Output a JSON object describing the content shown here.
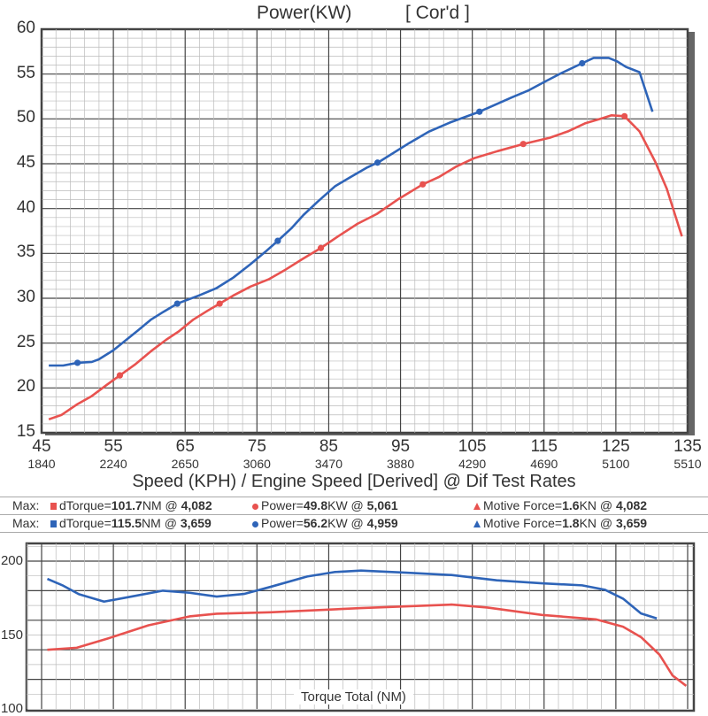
{
  "chart_data": [
    {
      "type": "line",
      "title": "Power(KW)",
      "title_suffix": "[ Cor'd ]",
      "xlabel": "Speed (KPH) / Engine Speed [Derived] @ Dif Test Rates",
      "ylabel": "",
      "xlim": [
        45,
        135
      ],
      "ylim": [
        15,
        60
      ],
      "x_ticks": [
        "45",
        "55",
        "65",
        "75",
        "85",
        "95",
        "105",
        "115",
        "125",
        "135"
      ],
      "x_ticks_secondary": [
        "1840",
        "2240",
        "2650",
        "3060",
        "3470",
        "3880",
        "4290",
        "4690",
        "5100",
        "5510"
      ],
      "y_ticks": [
        "60",
        "55",
        "50",
        "45",
        "40",
        "35",
        "30",
        "25",
        "20",
        "15"
      ],
      "grid": true,
      "series": [
        {
          "name": "Power",
          "color": "#2e64b8",
          "points": [
            [
              46,
              22.5
            ],
            [
              48,
              22.5
            ],
            [
              50,
              22.8
            ],
            [
              52,
              22.9
            ],
            [
              53,
              23.2
            ],
            [
              55,
              24.2
            ],
            [
              56.7,
              25.3
            ],
            [
              58.4,
              26.4
            ],
            [
              60.2,
              27.6
            ],
            [
              62,
              28.5
            ],
            [
              63.9,
              29.4
            ],
            [
              66.9,
              30.3
            ],
            [
              69.3,
              31.1
            ],
            [
              71.7,
              32.3
            ],
            [
              74.1,
              33.8
            ],
            [
              76.2,
              35.2
            ],
            [
              77.9,
              36.4
            ],
            [
              79.8,
              37.8
            ],
            [
              81.5,
              39.3
            ],
            [
              83.5,
              40.8
            ],
            [
              85.9,
              42.5
            ],
            [
              88,
              43.5
            ],
            [
              90.4,
              44.6
            ],
            [
              92,
              45.2
            ],
            [
              96.2,
              47.3
            ],
            [
              99,
              48.6
            ],
            [
              101.9,
              49.6
            ],
            [
              106,
              50.8
            ],
            [
              110.5,
              52.4
            ],
            [
              112.9,
              53.2
            ],
            [
              115,
              54.1
            ],
            [
              117.4,
              55.1
            ],
            [
              120.3,
              56.2
            ],
            [
              121.9,
              56.8
            ],
            [
              124,
              56.8
            ],
            [
              125.2,
              56.4
            ],
            [
              126.4,
              55.8
            ],
            [
              128.3,
              55.2
            ],
            [
              130.1,
              50.8
            ]
          ],
          "markers": [
            50,
            63.9,
            77.9,
            91.8,
            106,
            120.3
          ]
        },
        {
          "name": "Power",
          "color": "#e8524f",
          "points": [
            [
              46,
              16.5
            ],
            [
              47.8,
              17
            ],
            [
              50,
              18.2
            ],
            [
              52,
              19.1
            ],
            [
              54,
              20.3
            ],
            [
              55.9,
              21.4
            ],
            [
              58,
              22.6
            ],
            [
              60.4,
              24.2
            ],
            [
              62.4,
              25.4
            ],
            [
              64.1,
              26.3
            ],
            [
              66.1,
              27.6
            ],
            [
              68.1,
              28.6
            ],
            [
              69.8,
              29.4
            ],
            [
              71.7,
              30.3
            ],
            [
              74.1,
              31.3
            ],
            [
              76.6,
              32.1
            ],
            [
              79,
              33.2
            ],
            [
              81.4,
              34.4
            ],
            [
              83.9,
              35.6
            ],
            [
              86.3,
              36.9
            ],
            [
              89,
              38.3
            ],
            [
              91.7,
              39.4
            ],
            [
              94.6,
              41
            ],
            [
              98.1,
              42.7
            ],
            [
              100.3,
              43.5
            ],
            [
              102.8,
              44.7
            ],
            [
              105.2,
              45.6
            ],
            [
              108.5,
              46.4
            ],
            [
              112.1,
              47.2
            ],
            [
              115.8,
              47.9
            ],
            [
              118.3,
              48.6
            ],
            [
              120.7,
              49.5
            ],
            [
              123.2,
              50.1
            ],
            [
              124.4,
              50.4
            ],
            [
              126.2,
              50.3
            ],
            [
              128.3,
              48.6
            ],
            [
              130.5,
              45.2
            ],
            [
              132.1,
              42.2
            ],
            [
              134.2,
              36.9
            ]
          ],
          "markers": [
            55.9,
            69.8,
            83.9,
            98.1,
            112.1,
            126.2
          ]
        }
      ]
    },
    {
      "type": "line",
      "title": "Torque Total (NM)",
      "xlim": [
        45,
        135
      ],
      "ylim": [
        100,
        212
      ],
      "y_ticks": [
        "200",
        "150",
        "100"
      ],
      "grid": true,
      "series": [
        {
          "color": "#2e64b8",
          "points": [
            [
              45.8,
              188
            ],
            [
              48,
              183.4
            ],
            [
              50.2,
              177.6
            ],
            [
              53.7,
              172.6
            ],
            [
              57.5,
              176
            ],
            [
              61.9,
              180
            ],
            [
              65.6,
              178.6
            ],
            [
              69.4,
              176
            ],
            [
              73.2,
              177.8
            ],
            [
              76.9,
              182.6
            ],
            [
              82,
              189.6
            ],
            [
              85.8,
              192.6
            ],
            [
              89.5,
              193.6
            ],
            [
              95.8,
              192.2
            ],
            [
              102.1,
              190.6
            ],
            [
              108.4,
              187
            ],
            [
              114.7,
              185
            ],
            [
              120.3,
              183.6
            ],
            [
              123.5,
              180.6
            ],
            [
              126,
              174.6
            ],
            [
              128.5,
              164.6
            ],
            [
              130.7,
              161.2
            ]
          ]
        },
        {
          "color": "#e8524f",
          "points": [
            [
              45.8,
              140
            ],
            [
              49.9,
              141.4
            ],
            [
              54.2,
              147.6
            ],
            [
              59.9,
              156.6
            ],
            [
              65.6,
              162.6
            ],
            [
              69.4,
              164.4
            ],
            [
              76.9,
              165.4
            ],
            [
              89.5,
              168.2
            ],
            [
              102.1,
              170.6
            ],
            [
              107.1,
              168.6
            ],
            [
              114.7,
              163.6
            ],
            [
              122.2,
              160.6
            ],
            [
              126,
              155.6
            ],
            [
              128.5,
              148.6
            ],
            [
              131.1,
              136.6
            ],
            [
              132.9,
              122.6
            ],
            [
              134.8,
              115.6
            ]
          ]
        }
      ]
    }
  ],
  "legend": {
    "rows": [
      {
        "prefix": "Max:",
        "color": "#e8524f",
        "dtorque_label": "dTorque=",
        "dtorque_val": "101.7",
        "dtorque_unit": "NM @ ",
        "dtorque_rpm": "4,082",
        "power_label": "Power=",
        "power_val": "49.8",
        "power_unit": "KW @ ",
        "power_rpm": "5,061",
        "mf_label": "Motive Force=",
        "mf_val": "1.6",
        "mf_unit": "KN @ ",
        "mf_rpm": "4,082"
      },
      {
        "prefix": "Max:",
        "color": "#2e64b8",
        "dtorque_label": "dTorque=",
        "dtorque_val": "115.5",
        "dtorque_unit": "NM @ ",
        "dtorque_rpm": "3,659",
        "power_label": "Power=",
        "power_val": "56.2",
        "power_unit": "KW @ ",
        "power_rpm": "4,959",
        "mf_label": "Motive Force=",
        "mf_val": "1.8",
        "mf_unit": "KN @ ",
        "mf_rpm": "3,659"
      }
    ]
  }
}
